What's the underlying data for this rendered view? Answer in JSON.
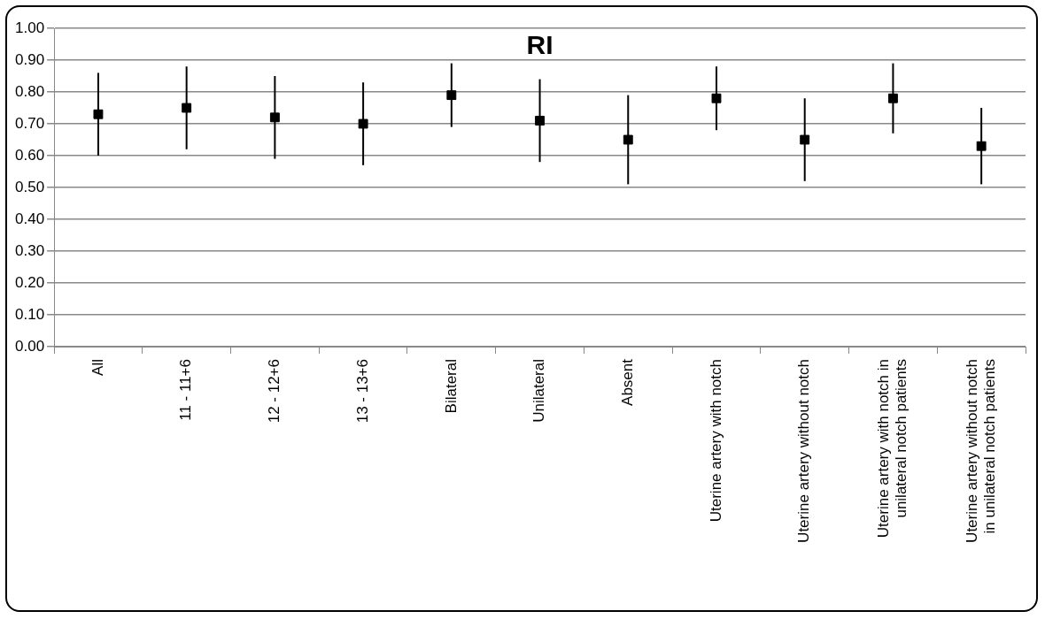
{
  "chart_data": {
    "type": "scatter",
    "title": "RI",
    "categories": [
      "All",
      "11 - 11+6",
      "12 - 12+6",
      "13 - 13+6",
      "Bilateral",
      "Unilateral",
      "Absent",
      "Uterine artery with notch",
      "Uterine artery without notch",
      "Uterine artery with notch in unilateral notch patients",
      "Uterine artery without notch in unilateral notch patients"
    ],
    "values": [
      0.73,
      0.75,
      0.72,
      0.7,
      0.79,
      0.71,
      0.65,
      0.78,
      0.65,
      0.78,
      0.63
    ],
    "errors": [
      0.13,
      0.13,
      0.13,
      0.13,
      0.1,
      0.13,
      0.14,
      0.1,
      0.13,
      0.11,
      0.12
    ],
    "color": "#000000",
    "marker": "square",
    "ylim": [
      0,
      1
    ],
    "yticks": [
      {
        "value": 0,
        "label": "0.00"
      },
      {
        "value": 0.1,
        "label": "0.10"
      },
      {
        "value": 0.2,
        "label": "0.20"
      },
      {
        "value": 0.3,
        "label": "0.30"
      },
      {
        "value": 0.4,
        "label": "0.40"
      },
      {
        "value": 0.5,
        "label": "0.50"
      },
      {
        "value": 0.6,
        "label": "0.60"
      },
      {
        "value": 0.7,
        "label": "0.70"
      },
      {
        "value": 0.8,
        "label": "0.80"
      },
      {
        "value": 0.9,
        "label": "0.90"
      },
      {
        "value": 1.0,
        "label": "1.00"
      }
    ],
    "grid": "y"
  }
}
